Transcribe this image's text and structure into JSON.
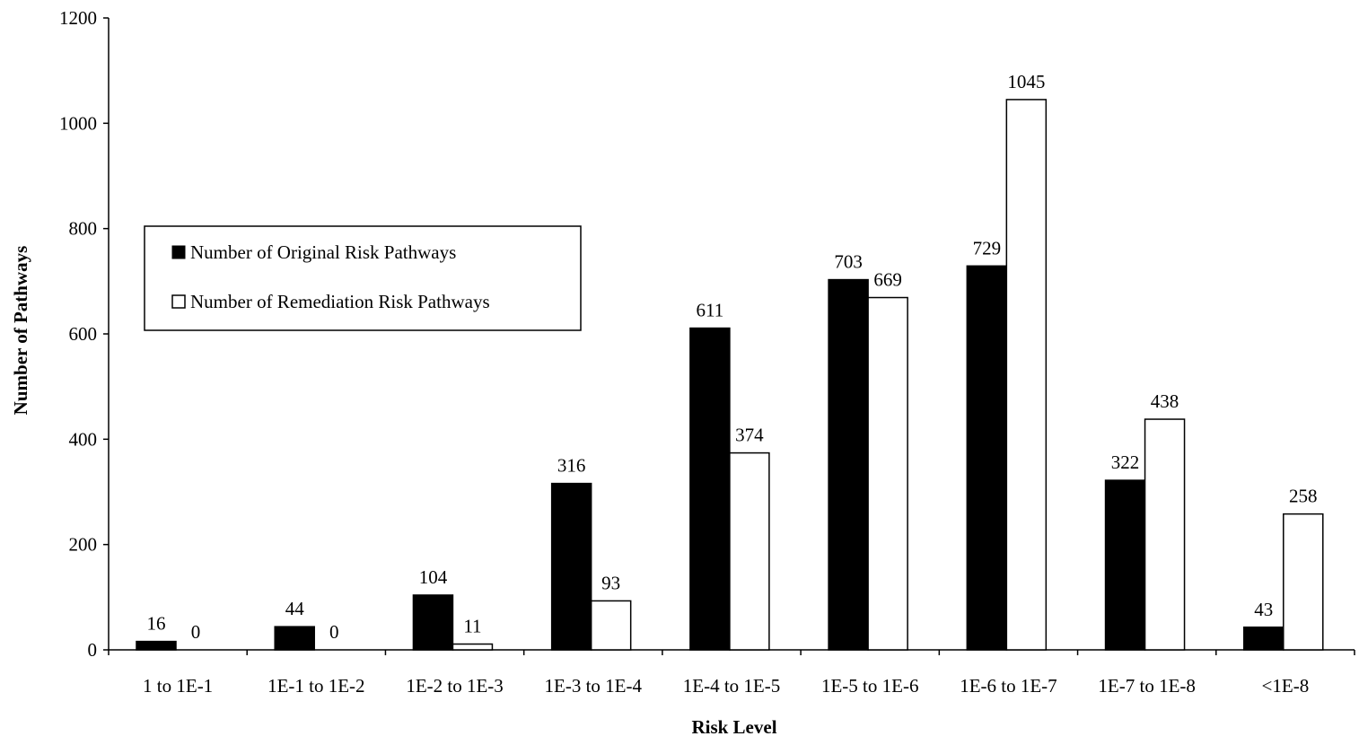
{
  "chart_data": {
    "type": "bar",
    "xlabel": "Risk Level",
    "ylabel": "Number of Pathways",
    "ylim": [
      0,
      1200
    ],
    "yticks": [
      0,
      200,
      400,
      600,
      800,
      1000,
      1200
    ],
    "grid": false,
    "legend_position": "middle-left",
    "categories": [
      "1 to 1E-1",
      "1E-1 to 1E-2",
      "1E-2 to 1E-3",
      "1E-3 to 1E-4",
      "1E-4 to 1E-5",
      "1E-5 to 1E-6",
      "1E-6 to 1E-7",
      "1E-7 to 1E-8",
      "<1E-8"
    ],
    "series": [
      {
        "name": "Number of Original Risk Pathways",
        "fill": "#000000",
        "values": [
          16,
          44,
          104,
          316,
          611,
          703,
          729,
          322,
          43
        ]
      },
      {
        "name": "Number of Remediation Risk Pathways",
        "fill": "#ffffff",
        "values": [
          0,
          0,
          11,
          93,
          374,
          669,
          1045,
          438,
          258
        ]
      }
    ]
  }
}
